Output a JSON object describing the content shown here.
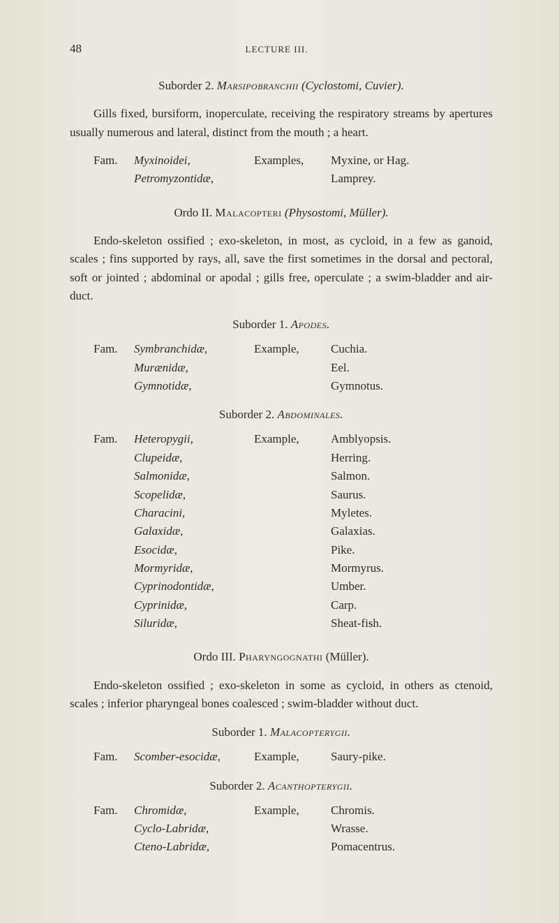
{
  "page_number": "48",
  "running_head": "LECTURE III.",
  "s1": {
    "suborder_line": "Suborder 2.   ",
    "suborder_name": "Marsipobranchii",
    "suborder_tail": " (Cyclostomi, Cuvier).",
    "para": "Gills fixed, bursiform, inoperculate, receiving the respiratory streams by apertures usually numerous and lateral, distinct from the mouth ; a heart.",
    "fam_label": "Fam.",
    "fam1": "Myxinoidei,",
    "fam1_ex_label": "Examples,",
    "fam1_ex": "Myxine, or Hag.",
    "fam2": "Petromyzontidæ,",
    "fam2_ex": "Lamprey."
  },
  "ordo2": {
    "label": "Ordo II.   ",
    "name": "Malacopteri",
    "tail": " (Physostomi, Müller).",
    "para": "Endo-skeleton ossified ; exo-skeleton, in most, as cycloid, in a few as ganoid, scales ; fins supported by rays, all, save the first sometimes in the dorsal and pectoral, soft or jointed ; abdominal or apodal ; gills free, operculate ; a swim-bladder and air-duct."
  },
  "sub1": {
    "line_a": "Suborder 1.   ",
    "line_b": "Apodes.",
    "fam_label": "Fam.",
    "ex_label": "Example,",
    "rows": [
      {
        "name": "Symbranchidæ,",
        "ex": "Cuchia."
      },
      {
        "name": "Murænidæ,",
        "ex": "Eel."
      },
      {
        "name": "Gymnotidæ,",
        "ex": "Gymnotus."
      }
    ]
  },
  "sub2": {
    "line_a": "Suborder 2.   ",
    "line_b": "Abdominales.",
    "fam_label": "Fam.",
    "ex_label": "Example,",
    "rows": [
      {
        "name": "Heteropygii,",
        "ex": "Amblyopsis."
      },
      {
        "name": "Clupeidæ,",
        "ex": "Herring."
      },
      {
        "name": "Salmonidæ,",
        "ex": "Salmon."
      },
      {
        "name": "Scopelidæ,",
        "ex": "Saurus."
      },
      {
        "name": "Characini,",
        "ex": "Myletes."
      },
      {
        "name": "Galaxidæ,",
        "ex": "Galaxias."
      },
      {
        "name": "Esocidæ,",
        "ex": "Pike."
      },
      {
        "name": "Mormyridæ,",
        "ex": "Mormyrus."
      },
      {
        "name": "Cyprinodontidæ,",
        "ex": "Umber."
      },
      {
        "name": "Cyprinidæ,",
        "ex": "Carp."
      },
      {
        "name": "Siluridæ,",
        "ex": "Sheat-fish."
      }
    ]
  },
  "ordo3": {
    "label": "Ordo III.   ",
    "name": "Pharyngognathi",
    "tail": " (Müller).",
    "para": "Endo-skeleton ossified ; exo-skeleton in some as cycloid, in others as ctenoid, scales ; inferior pharyngeal bones coalesced ; swim-bladder without duct."
  },
  "sub3": {
    "line_a": "Suborder 1.   ",
    "line_b": "Malacopterygii.",
    "fam_label": "Fam.",
    "row": {
      "name": "Scomber-esocidæ,",
      "mid": "Example,",
      "ex": "Saury-pike."
    }
  },
  "sub4": {
    "line_a": "Suborder 2.   ",
    "line_b": "Acanthopterygii.",
    "fam_label": "Fam.",
    "ex_label": "Example,",
    "rows": [
      {
        "name": "Chromidæ,",
        "ex": "Chromis."
      },
      {
        "name": "Cyclo-Labridæ,",
        "ex": "Wrasse."
      },
      {
        "name": "Cteno-Labridæ,",
        "ex": "Pomacentrus."
      }
    ]
  }
}
